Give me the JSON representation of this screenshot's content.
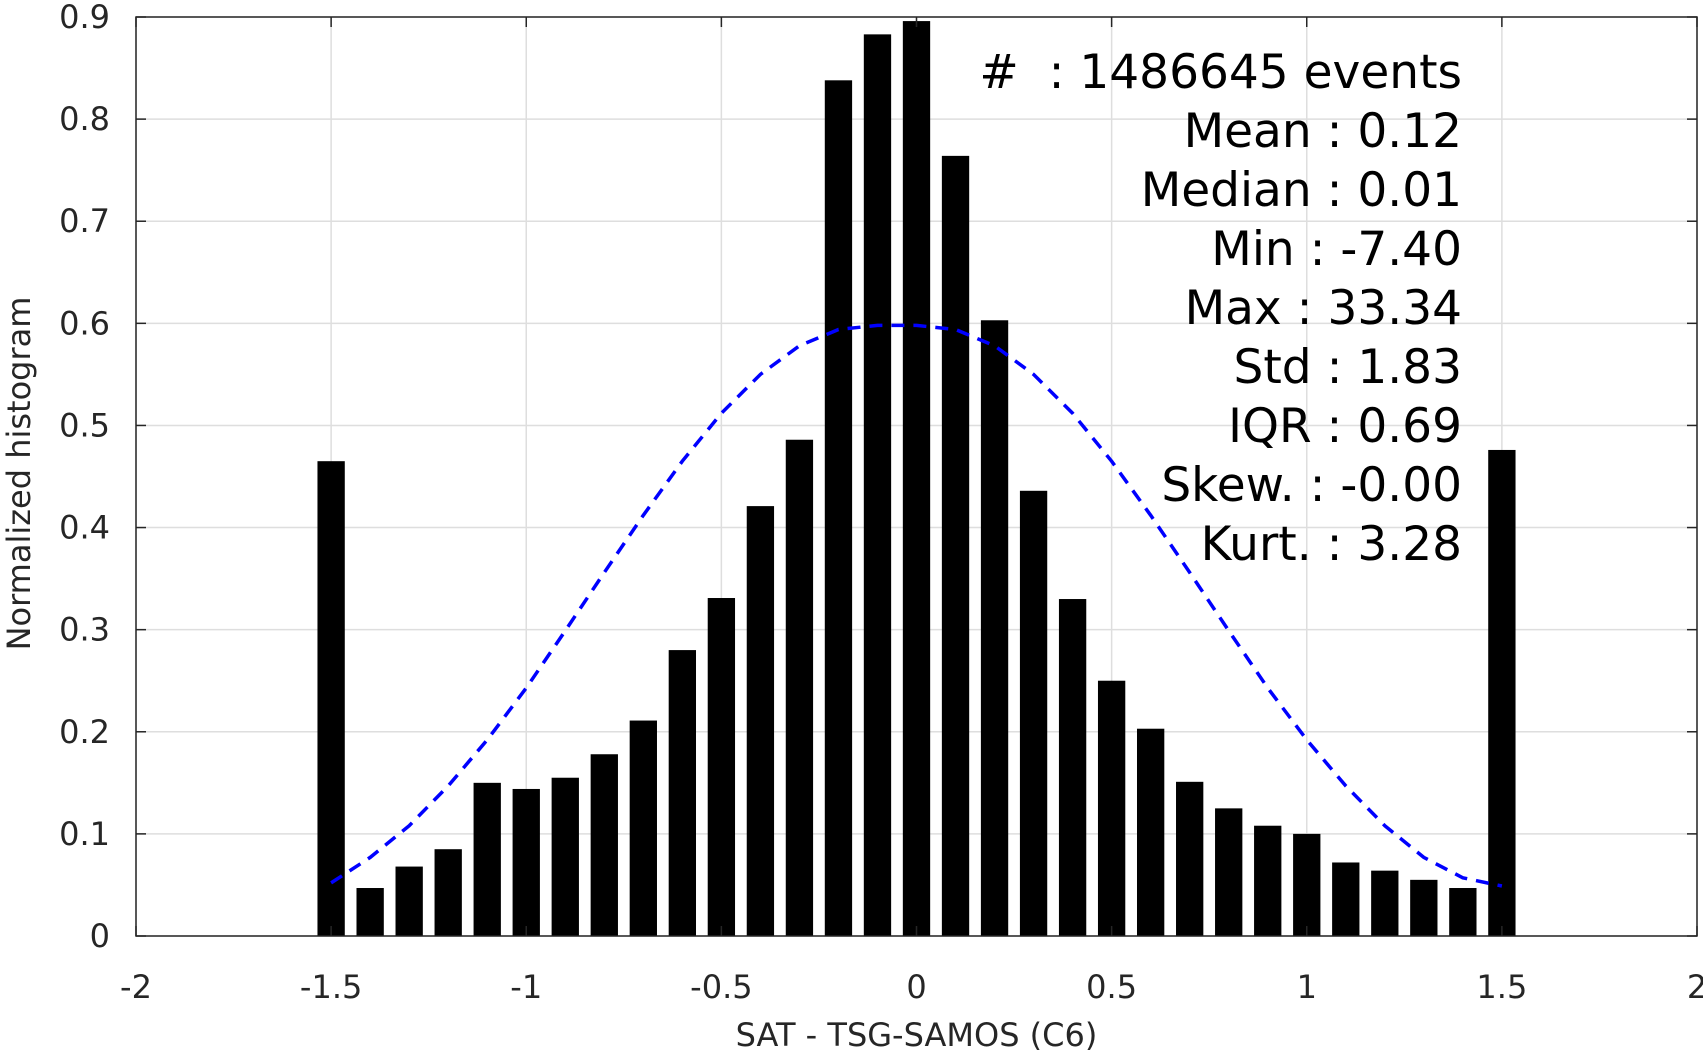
{
  "chart_data": {
    "type": "bar",
    "xlabel": "SAT - TSG-SAMOS (C6)",
    "ylabel": "Normalized histogram",
    "xlim": [
      -2,
      2
    ],
    "ylim": [
      0,
      0.9
    ],
    "xticks": [
      -2,
      -1.5,
      -1,
      -0.5,
      0,
      0.5,
      1,
      1.5,
      2
    ],
    "xtick_labels": [
      "-2",
      "-1.5",
      "-1",
      "-0.5",
      "0",
      "0.5",
      "1",
      "1.5",
      "2"
    ],
    "yticks": [
      0,
      0.1,
      0.2,
      0.3,
      0.4,
      0.5,
      0.6,
      0.7,
      0.8,
      0.9
    ],
    "ytick_labels": [
      "0",
      "0.1",
      "0.2",
      "0.3",
      "0.4",
      "0.5",
      "0.6",
      "0.7",
      "0.8",
      "0.9"
    ],
    "grid": true,
    "bar_color": "#000000",
    "bar_width": 0.07,
    "bins": {
      "x": [
        -1.5,
        -1.4,
        -1.3,
        -1.2,
        -1.1,
        -1.0,
        -0.9,
        -0.8,
        -0.7,
        -0.6,
        -0.5,
        -0.4,
        -0.3,
        -0.2,
        -0.1,
        0.0,
        0.1,
        0.2,
        0.3,
        0.4,
        0.5,
        0.6,
        0.7,
        0.8,
        0.9,
        1.0,
        1.1,
        1.2,
        1.3,
        1.4,
        1.5
      ],
      "values": [
        0.465,
        0.047,
        0.068,
        0.085,
        0.15,
        0.144,
        0.155,
        0.178,
        0.211,
        0.28,
        0.331,
        0.421,
        0.486,
        0.838,
        0.883,
        0.896,
        0.764,
        0.603,
        0.436,
        0.33,
        0.25,
        0.203,
        0.151,
        0.125,
        0.108,
        0.1,
        0.072,
        0.064,
        0.055,
        0.047,
        0.476
      ]
    },
    "fit_curve": {
      "style": "dashed",
      "color": "#0000ff",
      "x": [
        -1.5,
        -1.4,
        -1.3,
        -1.2,
        -1.1,
        -1.0,
        -0.9,
        -0.8,
        -0.7,
        -0.6,
        -0.5,
        -0.4,
        -0.3,
        -0.2,
        -0.1,
        0.0,
        0.1,
        0.2,
        0.3,
        0.4,
        0.5,
        0.6,
        0.7,
        0.8,
        0.9,
        1.0,
        1.1,
        1.2,
        1.3,
        1.4,
        1.5
      ],
      "values": [
        0.052,
        0.077,
        0.108,
        0.147,
        0.192,
        0.243,
        0.299,
        0.356,
        0.412,
        0.465,
        0.512,
        0.55,
        0.578,
        0.594,
        0.598,
        0.598,
        0.594,
        0.578,
        0.55,
        0.512,
        0.465,
        0.412,
        0.356,
        0.299,
        0.243,
        0.192,
        0.147,
        0.108,
        0.077,
        0.057,
        0.049
      ]
    },
    "stats_box": {
      "placement": "top-right",
      "lines": [
        "#  : 1486645 events",
        "Mean : 0.12",
        "Median : 0.01",
        "Min : -7.40",
        "Max : 33.34",
        "Std : 1.83",
        "IQR : 0.69",
        "Skew. : -0.00",
        "Kurt. : 3.28"
      ]
    }
  }
}
